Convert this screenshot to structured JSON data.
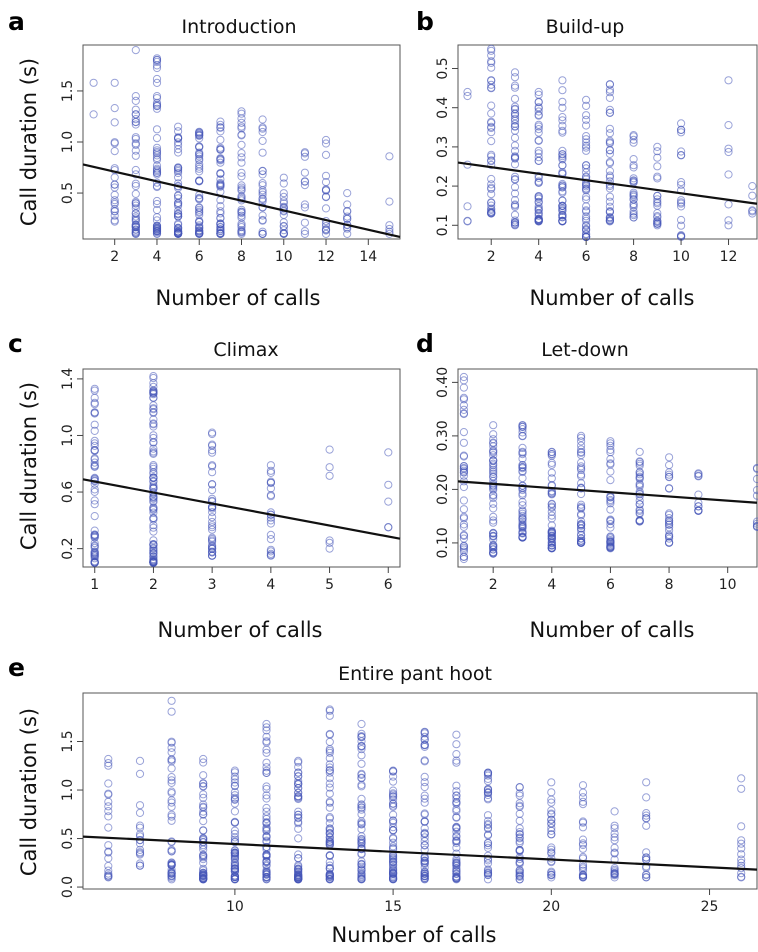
{
  "colors": {
    "points": "#4655b8",
    "trend": "#111111",
    "frame": "#555555"
  },
  "chart_data": [
    {
      "type": "scatter",
      "panel_label": "a",
      "title": "Introduction",
      "xlabel": "Number of calls",
      "ylabel": "Call duration (s)",
      "xlim": [
        0.5,
        15.5
      ],
      "ylim": [
        0.05,
        1.95
      ],
      "xticks": [
        2,
        4,
        6,
        8,
        10,
        12,
        14
      ],
      "yticks": [
        0.5,
        1.0,
        1.5
      ],
      "ytick_labels": [
        "0.5",
        "1.0",
        "1.5"
      ],
      "grid": false,
      "trend_line": {
        "x": [
          0.5,
          15.5
        ],
        "y": [
          0.78,
          0.07
        ]
      },
      "columns": [
        {
          "x": 1,
          "min": 1.27,
          "max": 1.58,
          "n": 2
        },
        {
          "x": 2,
          "min": 0.22,
          "max": 1.58,
          "n": 22
        },
        {
          "x": 3,
          "min": 0.1,
          "max": 1.9,
          "n": 45
        },
        {
          "x": 4,
          "min": 0.1,
          "max": 1.82,
          "n": 55
        },
        {
          "x": 5,
          "min": 0.1,
          "max": 1.15,
          "n": 55
        },
        {
          "x": 6,
          "min": 0.1,
          "max": 1.1,
          "n": 52
        },
        {
          "x": 7,
          "min": 0.1,
          "max": 1.2,
          "n": 48
        },
        {
          "x": 8,
          "min": 0.1,
          "max": 1.3,
          "n": 36
        },
        {
          "x": 9,
          "min": 0.1,
          "max": 1.22,
          "n": 26
        },
        {
          "x": 10,
          "min": 0.1,
          "max": 0.65,
          "n": 20
        },
        {
          "x": 11,
          "min": 0.1,
          "max": 0.9,
          "n": 12
        },
        {
          "x": 12,
          "min": 0.1,
          "max": 1.02,
          "n": 18
        },
        {
          "x": 13,
          "min": 0.1,
          "max": 0.5,
          "n": 12
        },
        {
          "x": 15,
          "min": 0.1,
          "max": 0.86,
          "n": 6
        }
      ]
    },
    {
      "type": "scatter",
      "panel_label": "b",
      "title": "Build-up",
      "xlabel": "Number of calls",
      "ylabel": "",
      "xlim": [
        0.6,
        13.2
      ],
      "ylim": [
        0.065,
        0.56
      ],
      "xticks": [
        2,
        4,
        6,
        8,
        10,
        12
      ],
      "yticks": [
        0.1,
        0.2,
        0.3,
        0.4,
        0.5
      ],
      "ytick_labels": [
        "0.1",
        "0.2",
        "0.3",
        "0.4",
        "0.5"
      ],
      "grid": false,
      "trend_line": {
        "x": [
          0.6,
          13.2
        ],
        "y": [
          0.26,
          0.155
        ]
      },
      "columns": [
        {
          "x": 1,
          "min": 0.11,
          "max": 0.44,
          "n": 6
        },
        {
          "x": 2,
          "min": 0.13,
          "max": 0.55,
          "n": 40
        },
        {
          "x": 3,
          "min": 0.1,
          "max": 0.49,
          "n": 42
        },
        {
          "x": 4,
          "min": 0.11,
          "max": 0.44,
          "n": 48
        },
        {
          "x": 5,
          "min": 0.11,
          "max": 0.47,
          "n": 48
        },
        {
          "x": 6,
          "min": 0.07,
          "max": 0.42,
          "n": 45
        },
        {
          "x": 7,
          "min": 0.11,
          "max": 0.46,
          "n": 38
        },
        {
          "x": 8,
          "min": 0.12,
          "max": 0.33,
          "n": 26
        },
        {
          "x": 9,
          "min": 0.1,
          "max": 0.3,
          "n": 22
        },
        {
          "x": 10,
          "min": 0.07,
          "max": 0.36,
          "n": 20
        },
        {
          "x": 12,
          "min": 0.1,
          "max": 0.47,
          "n": 8
        },
        {
          "x": 13,
          "min": 0.13,
          "max": 0.2,
          "n": 5
        }
      ]
    },
    {
      "type": "scatter",
      "panel_label": "c",
      "title": "Climax",
      "xlabel": "Number of calls",
      "ylabel": "Call duration (s)",
      "xlim": [
        0.8,
        6.2
      ],
      "ylim": [
        0.07,
        1.47
      ],
      "xticks": [
        1,
        2,
        3,
        4,
        5,
        6
      ],
      "yticks": [
        0.2,
        0.6,
        1.0,
        1.4
      ],
      "ytick_labels": [
        "0.2",
        "0.6",
        "1.0",
        "1.4"
      ],
      "grid": false,
      "trend_line": {
        "x": [
          0.8,
          6.2
        ],
        "y": [
          0.69,
          0.27
        ]
      },
      "columns": [
        {
          "x": 1,
          "min": 0.1,
          "max": 1.33,
          "n": 60
        },
        {
          "x": 2,
          "min": 0.1,
          "max": 1.42,
          "n": 95
        },
        {
          "x": 3,
          "min": 0.15,
          "max": 1.02,
          "n": 40
        },
        {
          "x": 4,
          "min": 0.15,
          "max": 0.79,
          "n": 22
        },
        {
          "x": 5,
          "min": 0.2,
          "max": 0.9,
          "n": 6
        },
        {
          "x": 6,
          "min": 0.35,
          "max": 0.88,
          "n": 5
        }
      ]
    },
    {
      "type": "scatter",
      "panel_label": "d",
      "title": "Let-down",
      "xlabel": "Number of calls",
      "ylabel": "",
      "xlim": [
        0.8,
        11.0
      ],
      "ylim": [
        0.055,
        0.425
      ],
      "xticks": [
        2,
        4,
        6,
        8,
        10
      ],
      "yticks": [
        0.1,
        0.2,
        0.3,
        0.4
      ],
      "ytick_labels": [
        "0.10",
        "0.20",
        "0.30",
        "0.40"
      ],
      "grid": false,
      "trend_line": {
        "x": [
          0.8,
          11.0
        ],
        "y": [
          0.215,
          0.175
        ]
      },
      "columns": [
        {
          "x": 1,
          "min": 0.07,
          "max": 0.41,
          "n": 40
        },
        {
          "x": 2,
          "min": 0.08,
          "max": 0.32,
          "n": 55
        },
        {
          "x": 3,
          "min": 0.11,
          "max": 0.32,
          "n": 55
        },
        {
          "x": 4,
          "min": 0.09,
          "max": 0.27,
          "n": 50
        },
        {
          "x": 5,
          "min": 0.1,
          "max": 0.3,
          "n": 45
        },
        {
          "x": 6,
          "min": 0.09,
          "max": 0.29,
          "n": 40
        },
        {
          "x": 7,
          "min": 0.14,
          "max": 0.27,
          "n": 30
        },
        {
          "x": 8,
          "min": 0.1,
          "max": 0.26,
          "n": 25
        },
        {
          "x": 9,
          "min": 0.16,
          "max": 0.23,
          "n": 12
        },
        {
          "x": 11,
          "min": 0.13,
          "max": 0.24,
          "n": 10
        }
      ]
    },
    {
      "type": "scatter",
      "panel_label": "e",
      "title": "Entire pant hoot",
      "xlabel": "Number of calls",
      "ylabel": "Call duration (s)",
      "xlim": [
        5.2,
        26.5
      ],
      "ylim": [
        -0.02,
        2.0
      ],
      "xticks": [
        10,
        15,
        20,
        25
      ],
      "yticks": [
        0.0,
        0.5,
        1.0,
        1.5
      ],
      "ytick_labels": [
        "0.0",
        "0.5",
        "1.0",
        "1.5"
      ],
      "grid": false,
      "trend_line": {
        "x": [
          5.2,
          26.5
        ],
        "y": [
          0.52,
          0.18
        ]
      },
      "columns": [
        {
          "x": 6,
          "min": 0.1,
          "max": 1.32,
          "n": 22
        },
        {
          "x": 7,
          "min": 0.22,
          "max": 1.3,
          "n": 18
        },
        {
          "x": 8,
          "min": 0.08,
          "max": 1.92,
          "n": 45
        },
        {
          "x": 9,
          "min": 0.08,
          "max": 1.32,
          "n": 55
        },
        {
          "x": 10,
          "min": 0.08,
          "max": 1.2,
          "n": 60
        },
        {
          "x": 11,
          "min": 0.08,
          "max": 1.68,
          "n": 62
        },
        {
          "x": 12,
          "min": 0.08,
          "max": 1.3,
          "n": 60
        },
        {
          "x": 13,
          "min": 0.08,
          "max": 1.83,
          "n": 62
        },
        {
          "x": 14,
          "min": 0.08,
          "max": 1.68,
          "n": 60
        },
        {
          "x": 15,
          "min": 0.08,
          "max": 1.2,
          "n": 58
        },
        {
          "x": 16,
          "min": 0.08,
          "max": 1.6,
          "n": 55
        },
        {
          "x": 17,
          "min": 0.08,
          "max": 1.57,
          "n": 52
        },
        {
          "x": 18,
          "min": 0.08,
          "max": 1.18,
          "n": 40
        },
        {
          "x": 19,
          "min": 0.08,
          "max": 1.03,
          "n": 36
        },
        {
          "x": 20,
          "min": 0.1,
          "max": 1.08,
          "n": 28
        },
        {
          "x": 21,
          "min": 0.1,
          "max": 1.05,
          "n": 25
        },
        {
          "x": 22,
          "min": 0.1,
          "max": 0.78,
          "n": 20
        },
        {
          "x": 23,
          "min": 0.1,
          "max": 1.08,
          "n": 18
        },
        {
          "x": 26,
          "min": 0.1,
          "max": 1.12,
          "n": 14
        }
      ]
    }
  ]
}
